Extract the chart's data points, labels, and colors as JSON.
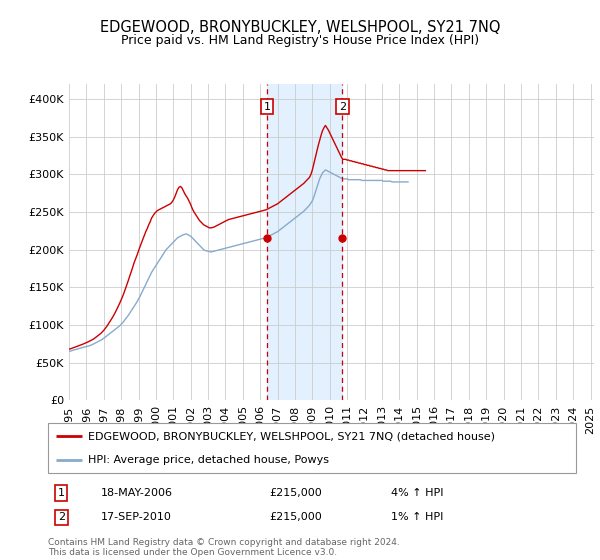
{
  "title": "EDGEWOOD, BRONYBUCKLEY, WELSHPOOL, SY21 7NQ",
  "subtitle": "Price paid vs. HM Land Registry's House Price Index (HPI)",
  "ylim": [
    0,
    420000
  ],
  "yticks": [
    0,
    50000,
    100000,
    150000,
    200000,
    250000,
    300000,
    350000,
    400000
  ],
  "ytick_labels": [
    "£0",
    "£50K",
    "£100K",
    "£150K",
    "£200K",
    "£250K",
    "£300K",
    "£350K",
    "£400K"
  ],
  "xlim_start": 1995.0,
  "xlim_end": 2025.2,
  "hpi_monthly": [
    65000,
    65500,
    66000,
    66800,
    67200,
    67800,
    68500,
    69000,
    69500,
    70000,
    70500,
    71000,
    71500,
    72000,
    72500,
    73200,
    74000,
    75000,
    76000,
    77000,
    78000,
    79000,
    80000,
    81000,
    82500,
    84000,
    85500,
    87000,
    88500,
    90000,
    91500,
    93000,
    94500,
    96000,
    97500,
    99000,
    101000,
    103000,
    105500,
    108000,
    110500,
    113000,
    116000,
    119000,
    122000,
    125000,
    128000,
    131000,
    134500,
    138000,
    142000,
    146000,
    150000,
    154000,
    158000,
    162000,
    166000,
    170000,
    173000,
    176000,
    179000,
    182000,
    185000,
    188000,
    191000,
    194000,
    197000,
    200000,
    202000,
    204000,
    206000,
    208000,
    210000,
    212000,
    214000,
    216000,
    217000,
    218000,
    219000,
    220000,
    220500,
    221000,
    220000,
    219000,
    218000,
    216000,
    214000,
    212000,
    210000,
    208000,
    206000,
    204000,
    202000,
    200000,
    199000,
    198500,
    198000,
    197500,
    197000,
    197500,
    198000,
    198500,
    199000,
    199500,
    200000,
    200500,
    201000,
    201500,
    202000,
    202500,
    203000,
    203500,
    204000,
    204500,
    205000,
    205500,
    206000,
    206500,
    207000,
    207500,
    208000,
    208500,
    209000,
    209500,
    210000,
    210500,
    211000,
    211500,
    212000,
    212500,
    213000,
    213500,
    214000,
    214500,
    215000,
    215500,
    216000,
    217000,
    218000,
    219000,
    220000,
    221000,
    222000,
    223000,
    224000,
    225500,
    227000,
    228500,
    230000,
    231500,
    233000,
    234500,
    236000,
    237500,
    239000,
    240500,
    242000,
    243500,
    245000,
    246500,
    248000,
    249500,
    251000,
    253000,
    255000,
    257000,
    259000,
    262000,
    265000,
    270000,
    276000,
    282000,
    288000,
    294000,
    298000,
    302000,
    304000,
    306000,
    305000,
    304000,
    303000,
    302000,
    301000,
    300000,
    299000,
    298000,
    297000,
    296000,
    295000,
    294000,
    294000,
    294000,
    294000,
    293000,
    293000,
    293000,
    293000,
    293000,
    293000,
    293000,
    293000,
    293000,
    292000,
    292000,
    292000,
    292000,
    292000,
    292000,
    292000,
    292000,
    292000,
    292000,
    292000,
    292000,
    292000,
    292000,
    292000,
    291000,
    291000,
    291000,
    291000,
    291000,
    291000,
    290000,
    290000,
    290000,
    290000,
    290000,
    290000,
    290000,
    290000,
    290000,
    290000,
    290000,
    290000
  ],
  "prop_monthly": [
    68000,
    68500,
    69200,
    69800,
    70500,
    71200,
    72000,
    72800,
    73500,
    74200,
    75000,
    75800,
    76500,
    77500,
    78500,
    79500,
    80500,
    81500,
    83000,
    84500,
    86000,
    87500,
    89000,
    91000,
    93000,
    95500,
    98000,
    101000,
    104000,
    107000,
    110000,
    113500,
    117000,
    121000,
    125000,
    129000,
    133500,
    138000,
    143000,
    148500,
    154000,
    159500,
    165500,
    171000,
    177000,
    183000,
    188000,
    193000,
    198500,
    204000,
    209000,
    214000,
    219000,
    224000,
    228000,
    233000,
    237000,
    242000,
    245000,
    248000,
    250000,
    252000,
    253000,
    254000,
    255000,
    256000,
    257000,
    258000,
    259000,
    260000,
    261000,
    263000,
    266000,
    270000,
    275000,
    280000,
    283000,
    284000,
    282000,
    278000,
    274000,
    271000,
    268000,
    264000,
    260000,
    255000,
    251000,
    248000,
    245000,
    242000,
    239000,
    237000,
    235000,
    233000,
    232000,
    231000,
    230000,
    229000,
    229000,
    229500,
    230000,
    231000,
    232000,
    233000,
    234000,
    235000,
    236000,
    237000,
    238000,
    239000,
    240000,
    240500,
    241000,
    241500,
    242000,
    242500,
    243000,
    243500,
    244000,
    244500,
    245000,
    245500,
    246000,
    246500,
    247000,
    247500,
    248000,
    248500,
    249000,
    249500,
    250000,
    250500,
    251000,
    251500,
    252000,
    252500,
    253000,
    254000,
    255000,
    256000,
    257000,
    258000,
    259000,
    260000,
    261000,
    262500,
    264000,
    265500,
    267000,
    268500,
    270000,
    271500,
    273000,
    274500,
    276000,
    277500,
    279000,
    280500,
    282000,
    283500,
    285000,
    286500,
    288000,
    290000,
    292000,
    294000,
    296000,
    300000,
    306000,
    314000,
    322000,
    330000,
    338000,
    345000,
    352000,
    358000,
    362000,
    365000,
    362000,
    359000,
    355000,
    351000,
    347000,
    343000,
    339000,
    335000,
    331000,
    327000,
    323000,
    320000,
    320000,
    320000,
    319000,
    319000,
    318000,
    318000,
    317000,
    317000,
    316000,
    316000,
    315000,
    315000,
    314000,
    314000,
    313000,
    313000,
    312000,
    312000,
    311000,
    311000,
    310000,
    310000,
    309000,
    309000,
    308000,
    308000,
    307000,
    307000,
    306000,
    306000,
    305000,
    305000,
    305000,
    305000,
    305000,
    305000,
    305000,
    305000,
    305000,
    305000,
    305000,
    305000,
    305000,
    305000,
    305000,
    305000,
    305000,
    305000,
    305000,
    305000,
    305000,
    305000,
    305000,
    305000,
    305000,
    305000,
    305000
  ],
  "red_line_color": "#cc0000",
  "blue_line_color": "#88aacc",
  "vline1_year": 2006.38,
  "vline2_year": 2010.72,
  "vline_color": "#cc0000",
  "shade_color": "#ddeeff",
  "dot1_year": 2006.38,
  "dot1_value": 215000,
  "dot2_year": 2010.72,
  "dot2_value": 215000,
  "marker1_label": "1",
  "marker2_label": "2",
  "legend_line1": "EDGEWOOD, BRONYBUCKLEY, WELSHPOOL, SY21 7NQ (detached house)",
  "legend_line2": "HPI: Average price, detached house, Powys",
  "transaction1_num": "1",
  "transaction1_date": "18-MAY-2006",
  "transaction1_price": "£215,000",
  "transaction1_hpi": "4% ↑ HPI",
  "transaction2_num": "2",
  "transaction2_date": "17-SEP-2010",
  "transaction2_price": "£215,000",
  "transaction2_hpi": "1% ↑ HPI",
  "footer": "Contains HM Land Registry data © Crown copyright and database right 2024.\nThis data is licensed under the Open Government Licence v3.0.",
  "bg_color": "#ffffff",
  "grid_color": "#cccccc",
  "title_fontsize": 10.5,
  "subtitle_fontsize": 9,
  "tick_fontsize": 8,
  "legend_fontsize": 8,
  "table_fontsize": 8,
  "footer_fontsize": 6.5
}
